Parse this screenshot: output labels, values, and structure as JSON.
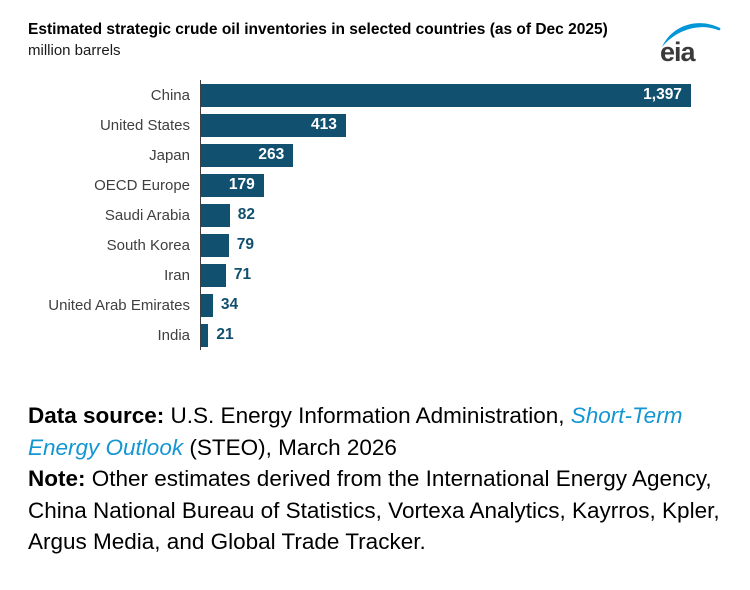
{
  "header": {
    "title": "Estimated strategic crude oil inventories in selected countries (as of Dec 2025)",
    "subtitle": "million barrels",
    "logo_text": "eia"
  },
  "chart_data": {
    "type": "bar",
    "orientation": "horizontal",
    "title": "Estimated strategic crude oil inventories in selected countries (as of Dec 2025)",
    "units_label": "million barrels",
    "categories": [
      "China",
      "United States",
      "Japan",
      "OECD Europe",
      "Saudi Arabia",
      "South Korea",
      "Iran",
      "United Arab Emirates",
      "India"
    ],
    "values": [
      1397,
      413,
      263,
      179,
      82,
      79,
      71,
      34,
      21
    ],
    "value_labels": [
      "1,397",
      "413",
      "263",
      "179",
      "82",
      "79",
      "71",
      "34",
      "21"
    ],
    "xlabel": "",
    "ylabel": "",
    "xlim": [
      0,
      1400
    ],
    "grid": false,
    "legend": false,
    "bar_color": "#12506f",
    "inside_label_color": "#ffffff",
    "outside_label_color": "#12506f",
    "inside_label_threshold": 100
  },
  "footer": {
    "data_source_label": "Data source:",
    "data_source_text": " U.S. Energy Information Administration, ",
    "data_source_link": "Short-Term Energy Outlook",
    "data_source_suffix": " (STEO), March 2026",
    "note_label": "Note:",
    "note_text": " Other estimates derived from the International Energy Agency, China National Bureau of Statistics, Vortexa Analytics, Kayrros, Kpler, Argus Media, and Global Trade Tracker."
  },
  "colors": {
    "bar": "#12506f",
    "link_blue": "#1496d3",
    "logo_blue": "#0096d7",
    "axis": "#3f3f3f",
    "category_text": "#3f3f3f"
  }
}
